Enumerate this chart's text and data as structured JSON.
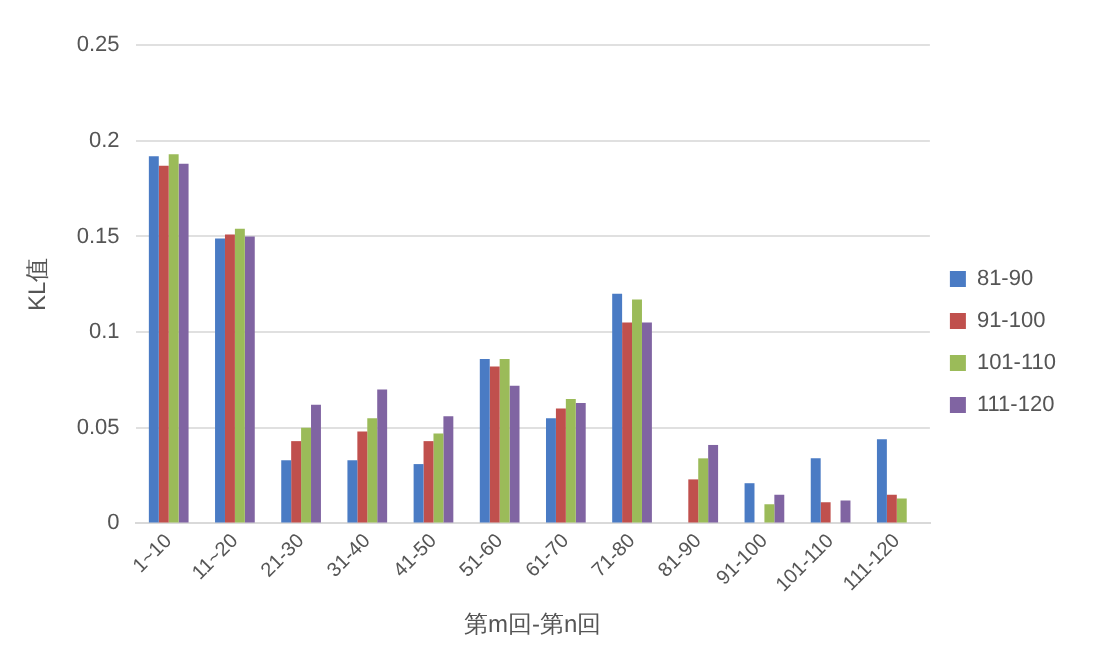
{
  "chart_data": {
    "type": "bar",
    "xlabel": "第m回-第n回",
    "ylabel": "KL值",
    "categories": [
      "1~10",
      "11~20",
      "21-30",
      "31-40",
      "41-50",
      "51-60",
      "61-70",
      "71-80",
      "81-90",
      "91-100",
      "101-110",
      "111-120"
    ],
    "series": [
      {
        "name": "81-90",
        "color": "#4a7bc4",
        "values": [
          0.192,
          0.149,
          0.033,
          0.033,
          0.031,
          0.086,
          0.055,
          0.12,
          null,
          0.021,
          0.034,
          0.044
        ]
      },
      {
        "name": "91-100",
        "color": "#c0504d",
        "values": [
          0.187,
          0.151,
          0.043,
          0.048,
          0.043,
          0.082,
          0.06,
          0.105,
          0.023,
          null,
          0.011,
          0.015
        ]
      },
      {
        "name": "101-110",
        "color": "#9bbb59",
        "values": [
          0.193,
          0.154,
          0.05,
          0.055,
          0.047,
          0.086,
          0.065,
          0.117,
          0.034,
          0.01,
          null,
          0.013
        ]
      },
      {
        "name": "111-120",
        "color": "#8064a2",
        "values": [
          0.188,
          0.15,
          0.062,
          0.07,
          0.056,
          0.072,
          0.063,
          0.105,
          0.041,
          0.015,
          0.012,
          null
        ]
      }
    ],
    "ylim": [
      0,
      0.25
    ],
    "yticks": [
      0,
      0.05,
      0.1,
      0.15,
      0.2,
      0.25
    ],
    "grid": "y",
    "legend": "right"
  }
}
